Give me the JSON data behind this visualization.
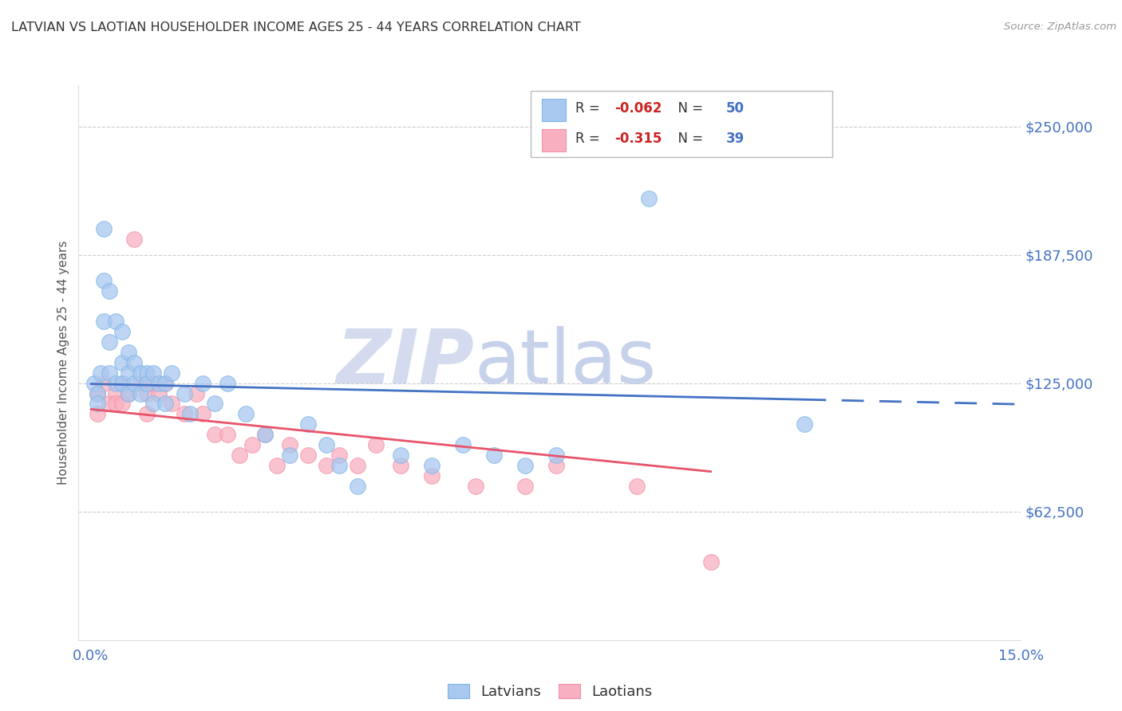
{
  "title": "LATVIAN VS LAOTIAN HOUSEHOLDER INCOME AGES 25 - 44 YEARS CORRELATION CHART",
  "source": "Source: ZipAtlas.com",
  "ylabel": "Householder Income Ages 25 - 44 years",
  "ytick_values": [
    62500,
    125000,
    187500,
    250000
  ],
  "ylim": [
    0,
    270000
  ],
  "xlim": [
    0.0,
    0.15
  ],
  "r_latvian": -0.062,
  "n_latvian": 50,
  "r_laotian": -0.315,
  "n_laotian": 39,
  "latvian_color": "#A8C8F0",
  "laotian_color": "#F8B0C0",
  "latvian_edge_color": "#7EB6E8",
  "laotian_edge_color": "#F490A8",
  "latvian_line_color": "#4472C4",
  "laotian_line_color": "#E8546A",
  "watermark_zip_color": "#D0D8EE",
  "watermark_atlas_color": "#C0CCE8",
  "background_color": "#FFFFFF",
  "grid_color": "#CCCCCC",
  "title_color": "#333333",
  "axis_tick_color": "#4472C4",
  "ylabel_color": "#555555",
  "legend_r_color": "#CC2222",
  "legend_n_color": "#4472C4",
  "marker_size": 200,
  "latvian_x": [
    0.0005,
    0.001,
    0.001,
    0.0015,
    0.002,
    0.002,
    0.002,
    0.003,
    0.003,
    0.003,
    0.004,
    0.004,
    0.005,
    0.005,
    0.005,
    0.006,
    0.006,
    0.006,
    0.007,
    0.007,
    0.008,
    0.008,
    0.009,
    0.009,
    0.01,
    0.01,
    0.011,
    0.012,
    0.012,
    0.013,
    0.015,
    0.016,
    0.018,
    0.02,
    0.022,
    0.025,
    0.028,
    0.032,
    0.035,
    0.038,
    0.04,
    0.043,
    0.05,
    0.055,
    0.06,
    0.065,
    0.07,
    0.075,
    0.09,
    0.115
  ],
  "latvian_y": [
    125000,
    120000,
    115000,
    130000,
    175000,
    200000,
    155000,
    170000,
    145000,
    130000,
    155000,
    125000,
    150000,
    135000,
    125000,
    140000,
    130000,
    120000,
    135000,
    125000,
    130000,
    120000,
    130000,
    125000,
    130000,
    115000,
    125000,
    115000,
    125000,
    130000,
    120000,
    110000,
    125000,
    115000,
    125000,
    110000,
    100000,
    90000,
    105000,
    95000,
    85000,
    75000,
    90000,
    85000,
    95000,
    90000,
    85000,
    90000,
    215000,
    105000
  ],
  "laotian_x": [
    0.001,
    0.001,
    0.002,
    0.003,
    0.004,
    0.004,
    0.005,
    0.005,
    0.006,
    0.007,
    0.008,
    0.009,
    0.009,
    0.01,
    0.011,
    0.012,
    0.013,
    0.015,
    0.017,
    0.018,
    0.02,
    0.022,
    0.024,
    0.026,
    0.028,
    0.03,
    0.032,
    0.035,
    0.038,
    0.04,
    0.043,
    0.046,
    0.05,
    0.055,
    0.062,
    0.07,
    0.075,
    0.088,
    0.1
  ],
  "laotian_y": [
    120000,
    110000,
    125000,
    115000,
    120000,
    115000,
    125000,
    115000,
    120000,
    195000,
    125000,
    120000,
    110000,
    125000,
    120000,
    125000,
    115000,
    110000,
    120000,
    110000,
    100000,
    100000,
    90000,
    95000,
    100000,
    85000,
    95000,
    90000,
    85000,
    90000,
    85000,
    95000,
    85000,
    80000,
    75000,
    75000,
    85000,
    75000,
    38000
  ]
}
